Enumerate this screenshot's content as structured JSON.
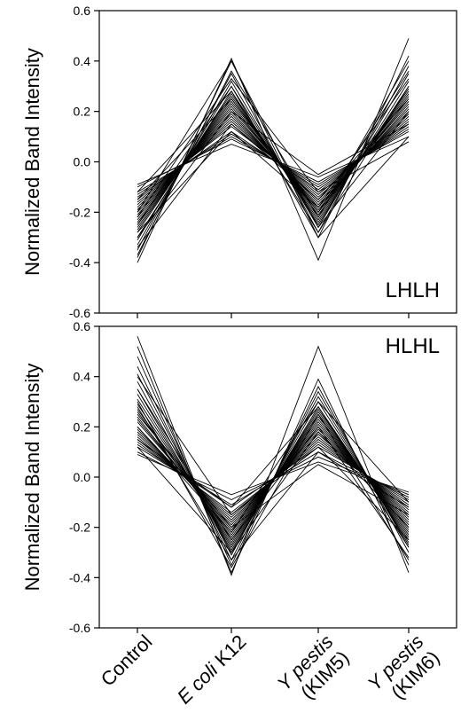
{
  "chart_data": [
    {
      "type": "line",
      "panel_label": "LHLH",
      "ylabel": "Normalized Band Intensity",
      "ylim": [
        -0.6,
        0.6
      ],
      "yticks": [
        -0.6,
        -0.4,
        -0.2,
        0.0,
        0.2,
        0.4,
        0.6
      ],
      "ytick_labels": [
        "-0.6",
        "-0.4",
        "-0.2",
        "0.0",
        "0.2",
        "0.4",
        "0.6"
      ],
      "categories": [
        "Control",
        "E coli K12",
        "Y pestis (KIM5)",
        "Y pestis (KIM6)"
      ],
      "series": [
        {
          "values": [
            -0.4,
            0.41,
            -0.39,
            0.49
          ]
        },
        {
          "values": [
            -0.38,
            0.4,
            -0.3,
            0.42
          ]
        },
        {
          "values": [
            -0.35,
            0.35,
            -0.28,
            0.38
          ]
        },
        {
          "values": [
            -0.33,
            0.32,
            -0.26,
            0.35
          ]
        },
        {
          "values": [
            -0.31,
            0.3,
            -0.25,
            0.32
          ]
        },
        {
          "values": [
            -0.3,
            0.28,
            -0.24,
            0.3
          ]
        },
        {
          "values": [
            -0.28,
            0.27,
            -0.23,
            0.29
          ]
        },
        {
          "values": [
            -0.27,
            0.26,
            -0.22,
            0.28
          ]
        },
        {
          "values": [
            -0.26,
            0.25,
            -0.21,
            0.27
          ]
        },
        {
          "values": [
            -0.25,
            0.24,
            -0.2,
            0.26
          ]
        },
        {
          "values": [
            -0.24,
            0.23,
            -0.2,
            0.25
          ]
        },
        {
          "values": [
            -0.23,
            0.22,
            -0.19,
            0.24
          ]
        },
        {
          "values": [
            -0.22,
            0.21,
            -0.18,
            0.23
          ]
        },
        {
          "values": [
            -0.21,
            0.2,
            -0.18,
            0.22
          ]
        },
        {
          "values": [
            -0.2,
            0.19,
            -0.17,
            0.21
          ]
        },
        {
          "values": [
            -0.19,
            0.18,
            -0.16,
            0.2
          ]
        },
        {
          "values": [
            -0.18,
            0.17,
            -0.15,
            0.19
          ]
        },
        {
          "values": [
            -0.17,
            0.16,
            -0.14,
            0.18
          ]
        },
        {
          "values": [
            -0.16,
            0.15,
            -0.13,
            0.17
          ]
        },
        {
          "values": [
            -0.15,
            0.14,
            -0.12,
            0.16
          ]
        },
        {
          "values": [
            -0.14,
            0.12,
            -0.11,
            0.15
          ]
        },
        {
          "values": [
            -0.13,
            0.11,
            -0.1,
            0.14
          ]
        },
        {
          "values": [
            -0.12,
            0.1,
            -0.09,
            0.13
          ]
        },
        {
          "values": [
            -0.1,
            0.09,
            -0.08,
            0.12
          ]
        },
        {
          "values": [
            -0.09,
            0.07,
            -0.06,
            0.1
          ]
        },
        {
          "values": [
            -0.37,
            0.36,
            -0.22,
            0.4
          ]
        },
        {
          "values": [
            -0.2,
            0.4,
            -0.26,
            0.2
          ]
        },
        {
          "values": [
            -0.3,
            0.2,
            -0.05,
            0.15
          ]
        },
        {
          "values": [
            -0.25,
            0.3,
            -0.3,
            0.1
          ]
        },
        {
          "values": [
            -0.15,
            0.25,
            -0.2,
            0.36
          ]
        },
        {
          "values": [
            -0.34,
            0.15,
            -0.15,
            0.25
          ]
        },
        {
          "values": [
            -0.22,
            0.33,
            -0.12,
            0.08
          ]
        },
        {
          "values": [
            -0.12,
            0.28,
            -0.28,
            0.3
          ]
        },
        {
          "values": [
            -0.28,
            0.12,
            -0.18,
            0.33
          ]
        }
      ]
    },
    {
      "type": "line",
      "panel_label": "HLHL",
      "ylabel": "Normalized Band Intensity",
      "ylim": [
        -0.6,
        0.6
      ],
      "yticks": [
        -0.6,
        -0.4,
        -0.2,
        0.0,
        0.2,
        0.4,
        0.6
      ],
      "ytick_labels": [
        "-0.6",
        "-0.4",
        "-0.2",
        "0.0",
        "0.2",
        "0.4",
        "0.6"
      ],
      "categories": [
        "Control",
        "E coli K12",
        "Y pestis (KIM5)",
        "Y pestis (KIM6)"
      ],
      "series": [
        {
          "values": [
            0.56,
            -0.39,
            0.52,
            -0.38
          ]
        },
        {
          "values": [
            0.52,
            -0.38,
            0.39,
            -0.35
          ]
        },
        {
          "values": [
            0.48,
            -0.35,
            0.36,
            -0.3
          ]
        },
        {
          "values": [
            0.44,
            -0.33,
            0.34,
            -0.28
          ]
        },
        {
          "values": [
            0.41,
            -0.31,
            0.32,
            -0.27
          ]
        },
        {
          "values": [
            0.38,
            -0.3,
            0.3,
            -0.26
          ]
        },
        {
          "values": [
            0.35,
            -0.29,
            0.28,
            -0.25
          ]
        },
        {
          "values": [
            0.33,
            -0.28,
            0.27,
            -0.24
          ]
        },
        {
          "values": [
            0.31,
            -0.27,
            0.26,
            -0.23
          ]
        },
        {
          "values": [
            0.29,
            -0.26,
            0.25,
            -0.22
          ]
        },
        {
          "values": [
            0.27,
            -0.25,
            0.24,
            -0.21
          ]
        },
        {
          "values": [
            0.26,
            -0.24,
            0.23,
            -0.2
          ]
        },
        {
          "values": [
            0.24,
            -0.23,
            0.22,
            -0.19
          ]
        },
        {
          "values": [
            0.23,
            -0.22,
            0.21,
            -0.18
          ]
        },
        {
          "values": [
            0.22,
            -0.21,
            0.2,
            -0.17
          ]
        },
        {
          "values": [
            0.2,
            -0.2,
            0.19,
            -0.16
          ]
        },
        {
          "values": [
            0.19,
            -0.19,
            0.18,
            -0.15
          ]
        },
        {
          "values": [
            0.18,
            -0.18,
            0.17,
            -0.14
          ]
        },
        {
          "values": [
            0.17,
            -0.17,
            0.16,
            -0.13
          ]
        },
        {
          "values": [
            0.16,
            -0.16,
            0.15,
            -0.12
          ]
        },
        {
          "values": [
            0.15,
            -0.15,
            0.14,
            -0.11
          ]
        },
        {
          "values": [
            0.14,
            -0.14,
            0.13,
            -0.1
          ]
        },
        {
          "values": [
            0.13,
            -0.12,
            0.12,
            -0.09
          ]
        },
        {
          "values": [
            0.12,
            -0.11,
            0.1,
            -0.08
          ]
        },
        {
          "values": [
            0.1,
            -0.09,
            0.08,
            -0.07
          ]
        },
        {
          "values": [
            0.09,
            -0.07,
            0.06,
            -0.06
          ]
        },
        {
          "values": [
            0.3,
            -0.36,
            0.25,
            -0.33
          ]
        },
        {
          "values": [
            0.2,
            -0.22,
            0.3,
            -0.1
          ]
        },
        {
          "values": [
            0.4,
            -0.15,
            0.12,
            -0.25
          ]
        },
        {
          "values": [
            0.12,
            -0.3,
            0.18,
            -0.2
          ]
        },
        {
          "values": [
            0.25,
            -0.2,
            0.05,
            -0.15
          ]
        },
        {
          "values": [
            0.35,
            -0.25,
            0.2,
            -0.32
          ]
        },
        {
          "values": [
            0.15,
            -0.12,
            0.28,
            -0.28
          ]
        },
        {
          "values": [
            0.28,
            -0.33,
            0.1,
            -0.12
          ]
        }
      ]
    }
  ],
  "xaxis": {
    "categories": [
      {
        "parts": [
          {
            "text": "Control",
            "italic": false
          }
        ]
      },
      {
        "parts": [
          {
            "text": "E",
            "italic": true
          },
          {
            "text": " coli",
            "italic": true
          },
          {
            "text": " K12",
            "italic": false
          }
        ]
      },
      {
        "parts": [
          {
            "text": "Y",
            "italic": true
          },
          {
            "text": " pestis",
            "italic": true
          }
        ],
        "line2": "(KIM5)"
      },
      {
        "parts": [
          {
            "text": "Y",
            "italic": true
          },
          {
            "text": " pestis",
            "italic": true
          }
        ],
        "line2": "(KIM6)"
      }
    ]
  }
}
